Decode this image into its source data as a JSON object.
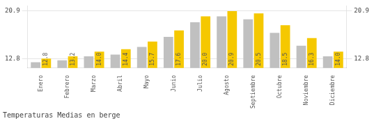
{
  "chart_data": {
    "type": "bar",
    "title": "Temperaturas Medias en berge",
    "categories": [
      "Enero",
      "Febrero",
      "Marzo",
      "Abril",
      "Mayo",
      "Junio",
      "Julio",
      "Agosto",
      "Septiembre",
      "Octubre",
      "Noviembre",
      "Diciembre"
    ],
    "series": [
      {
        "color": "#C0C0C0",
        "values": [
          12.2,
          12.5,
          13.2,
          13.5,
          14.8,
          16.5,
          19.0,
          20.0,
          19.5,
          17.2,
          15.0,
          13.2
        ]
      },
      {
        "color": "#F5C800",
        "values": [
          12.8,
          13.2,
          14.0,
          14.4,
          15.7,
          17.6,
          20.0,
          20.9,
          20.5,
          18.5,
          16.3,
          14.0
        ],
        "data_labels": true,
        "value_labels": [
          "12.8",
          "13.2",
          "14.0",
          "14.4",
          "15.7",
          "17.6",
          "20.0",
          "20.9",
          "20.5",
          "18.5",
          "16.3",
          "14.0"
        ]
      }
    ],
    "ylim": [
      11.2,
      21.8
    ],
    "yticks": [
      12.8,
      20.9
    ],
    "y2lim": [
      11.2,
      21.8
    ],
    "y2ticks": [
      12.8,
      20.9
    ],
    "grid": true
  }
}
